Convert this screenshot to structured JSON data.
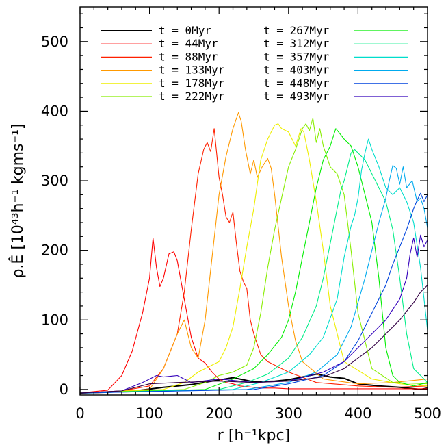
{
  "chart_data": {
    "type": "line",
    "xlabel": "r [h⁻¹kpc]",
    "ylabel": "ρ.Ê [10⁴³h⁻¹ kgms⁻¹]",
    "xlim": [
      0,
      500
    ],
    "ylim": [
      -8,
      550
    ],
    "xticks": [
      "0",
      "100",
      "200",
      "300",
      "400",
      "500"
    ],
    "yticks": [
      "0",
      "100",
      "200",
      "300",
      "400",
      "500"
    ],
    "legend_position": "top",
    "grid": false,
    "series": [
      {
        "name": "t  =  0Myr",
        "color": "#000000",
        "x": [
          0,
          40,
          80,
          120,
          160,
          190,
          220,
          250,
          280,
          300,
          320,
          340,
          360,
          380,
          400,
          430,
          460,
          490,
          500
        ],
        "values": [
          -5,
          -4,
          -2,
          3,
          7,
          12,
          17,
          11,
          12,
          14,
          18,
          22,
          18,
          16,
          8,
          5,
          3,
          0,
          2
        ]
      },
      {
        "name": "t  =  44Myr",
        "color": "#ff0000",
        "x": [
          0,
          40,
          60,
          75,
          90,
          100,
          105,
          110,
          115,
          120,
          128,
          135,
          140,
          150,
          160,
          170,
          180,
          190,
          200,
          210,
          220,
          230,
          240,
          250,
          260,
          280,
          300,
          350,
          400,
          450,
          500
        ],
        "values": [
          -5,
          -1,
          20,
          55,
          110,
          160,
          218,
          175,
          148,
          160,
          195,
          198,
          185,
          130,
          75,
          45,
          38,
          25,
          15,
          10,
          8,
          5,
          4,
          3,
          2,
          2,
          1,
          1,
          1,
          1,
          1
        ]
      },
      {
        "name": "t  =  88Myr",
        "color": "#ff2000",
        "x": [
          0,
          60,
          100,
          120,
          140,
          150,
          160,
          170,
          178,
          183,
          188,
          193,
          200,
          205,
          210,
          215,
          220,
          225,
          230,
          235,
          240,
          245,
          250,
          255,
          260,
          270,
          280,
          290,
          300,
          340,
          400,
          450,
          500
        ],
        "values": [
          -5,
          -2,
          5,
          30,
          80,
          140,
          230,
          310,
          345,
          355,
          342,
          375,
          305,
          280,
          248,
          240,
          255,
          210,
          170,
          155,
          145,
          100,
          80,
          65,
          50,
          40,
          35,
          30,
          25,
          10,
          5,
          3,
          5
        ]
      },
      {
        "name": "t  =  133Myr",
        "color": "#ff9900",
        "x": [
          0,
          100,
          120,
          140,
          150,
          160,
          170,
          180,
          190,
          200,
          210,
          220,
          228,
          232,
          238,
          245,
          250,
          255,
          262,
          270,
          275,
          280,
          290,
          300,
          310,
          320,
          350,
          400,
          450,
          500
        ],
        "values": [
          -5,
          0,
          30,
          80,
          100,
          60,
          45,
          100,
          190,
          280,
          335,
          375,
          398,
          385,
          345,
          310,
          330,
          305,
          320,
          332,
          318,
          280,
          190,
          120,
          70,
          40,
          15,
          8,
          10,
          15
        ]
      },
      {
        "name": "t  =  178Myr",
        "color": "#eeee00",
        "x": [
          0,
          120,
          150,
          170,
          190,
          200,
          210,
          220,
          230,
          240,
          250,
          260,
          270,
          280,
          285,
          290,
          300,
          310,
          318,
          322,
          330,
          340,
          350,
          360,
          380,
          420,
          460,
          500
        ],
        "values": [
          -5,
          0,
          10,
          25,
          35,
          40,
          60,
          90,
          145,
          205,
          260,
          330,
          360,
          380,
          382,
          375,
          370,
          350,
          375,
          370,
          330,
          270,
          200,
          120,
          40,
          15,
          8,
          5
        ]
      },
      {
        "name": "t  =  222Myr",
        "color": "#88ee00",
        "x": [
          0,
          150,
          180,
          200,
          220,
          240,
          250,
          260,
          270,
          280,
          290,
          300,
          310,
          320,
          325,
          330,
          335,
          340,
          345,
          350,
          360,
          370,
          380,
          390,
          400,
          420,
          450,
          500
        ],
        "values": [
          -5,
          0,
          10,
          20,
          25,
          35,
          60,
          110,
          175,
          230,
          275,
          320,
          345,
          375,
          382,
          372,
          390,
          355,
          375,
          350,
          320,
          310,
          280,
          200,
          110,
          30,
          10,
          8
        ]
      },
      {
        "name": "t  =  267Myr",
        "color": "#00ee00",
        "x": [
          0,
          180,
          220,
          250,
          270,
          290,
          300,
          310,
          320,
          330,
          340,
          350,
          360,
          368,
          372,
          380,
          390,
          400,
          410,
          420,
          430,
          440,
          450,
          460,
          480,
          500
        ],
        "values": [
          -5,
          0,
          15,
          30,
          50,
          75,
          100,
          140,
          190,
          240,
          290,
          330,
          350,
          375,
          370,
          360,
          350,
          320,
          280,
          240,
          160,
          60,
          20,
          10,
          5,
          10
        ]
      },
      {
        "name": "t  =  312Myr",
        "color": "#00ee88",
        "x": [
          0,
          200,
          240,
          270,
          300,
          320,
          340,
          350,
          360,
          370,
          375,
          380,
          385,
          390,
          395,
          400,
          410,
          420,
          430,
          440,
          450,
          460,
          470,
          480,
          500
        ],
        "values": [
          -5,
          0,
          10,
          22,
          45,
          75,
          120,
          160,
          210,
          260,
          285,
          300,
          320,
          340,
          345,
          340,
          330,
          310,
          290,
          270,
          230,
          160,
          80,
          30,
          10
        ]
      },
      {
        "name": "t  =  357Myr",
        "color": "#00ddcc",
        "x": [
          0,
          220,
          260,
          300,
          330,
          350,
          370,
          380,
          390,
          395,
          400,
          405,
          410,
          415,
          420,
          430,
          440,
          450,
          460,
          470,
          480,
          490,
          500
        ],
        "values": [
          -5,
          0,
          10,
          25,
          50,
          75,
          130,
          190,
          235,
          250,
          275,
          315,
          340,
          360,
          345,
          320,
          290,
          280,
          290,
          270,
          240,
          175,
          85
        ]
      },
      {
        "name": "t  =  403Myr",
        "color": "#00aaee",
        "x": [
          0,
          240,
          300,
          340,
          370,
          390,
          410,
          420,
          430,
          440,
          445,
          450,
          455,
          460,
          465,
          470,
          478,
          485,
          490,
          495,
          500
        ],
        "values": [
          -5,
          0,
          10,
          25,
          50,
          90,
          160,
          200,
          240,
          275,
          300,
          322,
          318,
          295,
          320,
          290,
          300,
          270,
          275,
          260,
          232
        ]
      },
      {
        "name": "t  =  448Myr",
        "color": "#0044dd",
        "x": [
          0,
          250,
          300,
          350,
          380,
          400,
          420,
          440,
          450,
          460,
          470,
          480,
          485,
          490,
          495,
          500
        ],
        "values": [
          -5,
          0,
          8,
          20,
          40,
          70,
          110,
          150,
          180,
          205,
          230,
          260,
          272,
          282,
          270,
          280
        ]
      },
      {
        "name": "t  =  493Myr",
        "color": "#3300bb",
        "x": [
          0,
          60,
          90,
          100,
          110,
          120,
          140,
          160,
          200,
          250,
          300,
          350,
          380,
          400,
          420,
          440,
          460,
          470,
          475,
          480,
          485,
          490,
          495,
          500
        ],
        "values": [
          -5,
          -2,
          10,
          15,
          20,
          18,
          20,
          10,
          15,
          10,
          12,
          25,
          40,
          60,
          80,
          100,
          130,
          160,
          195,
          218,
          190,
          222,
          205,
          215
        ]
      },
      {
        "name": "t  =  493Myr",
        "color": "#330044",
        "x": [
          0,
          60,
          100,
          140,
          200,
          250,
          300,
          350,
          380,
          400,
          420,
          440,
          460,
          480,
          490,
          500
        ],
        "values": [
          -5,
          -2,
          8,
          10,
          12,
          10,
          12,
          18,
          30,
          45,
          60,
          80,
          100,
          125,
          140,
          150
        ]
      }
    ]
  }
}
